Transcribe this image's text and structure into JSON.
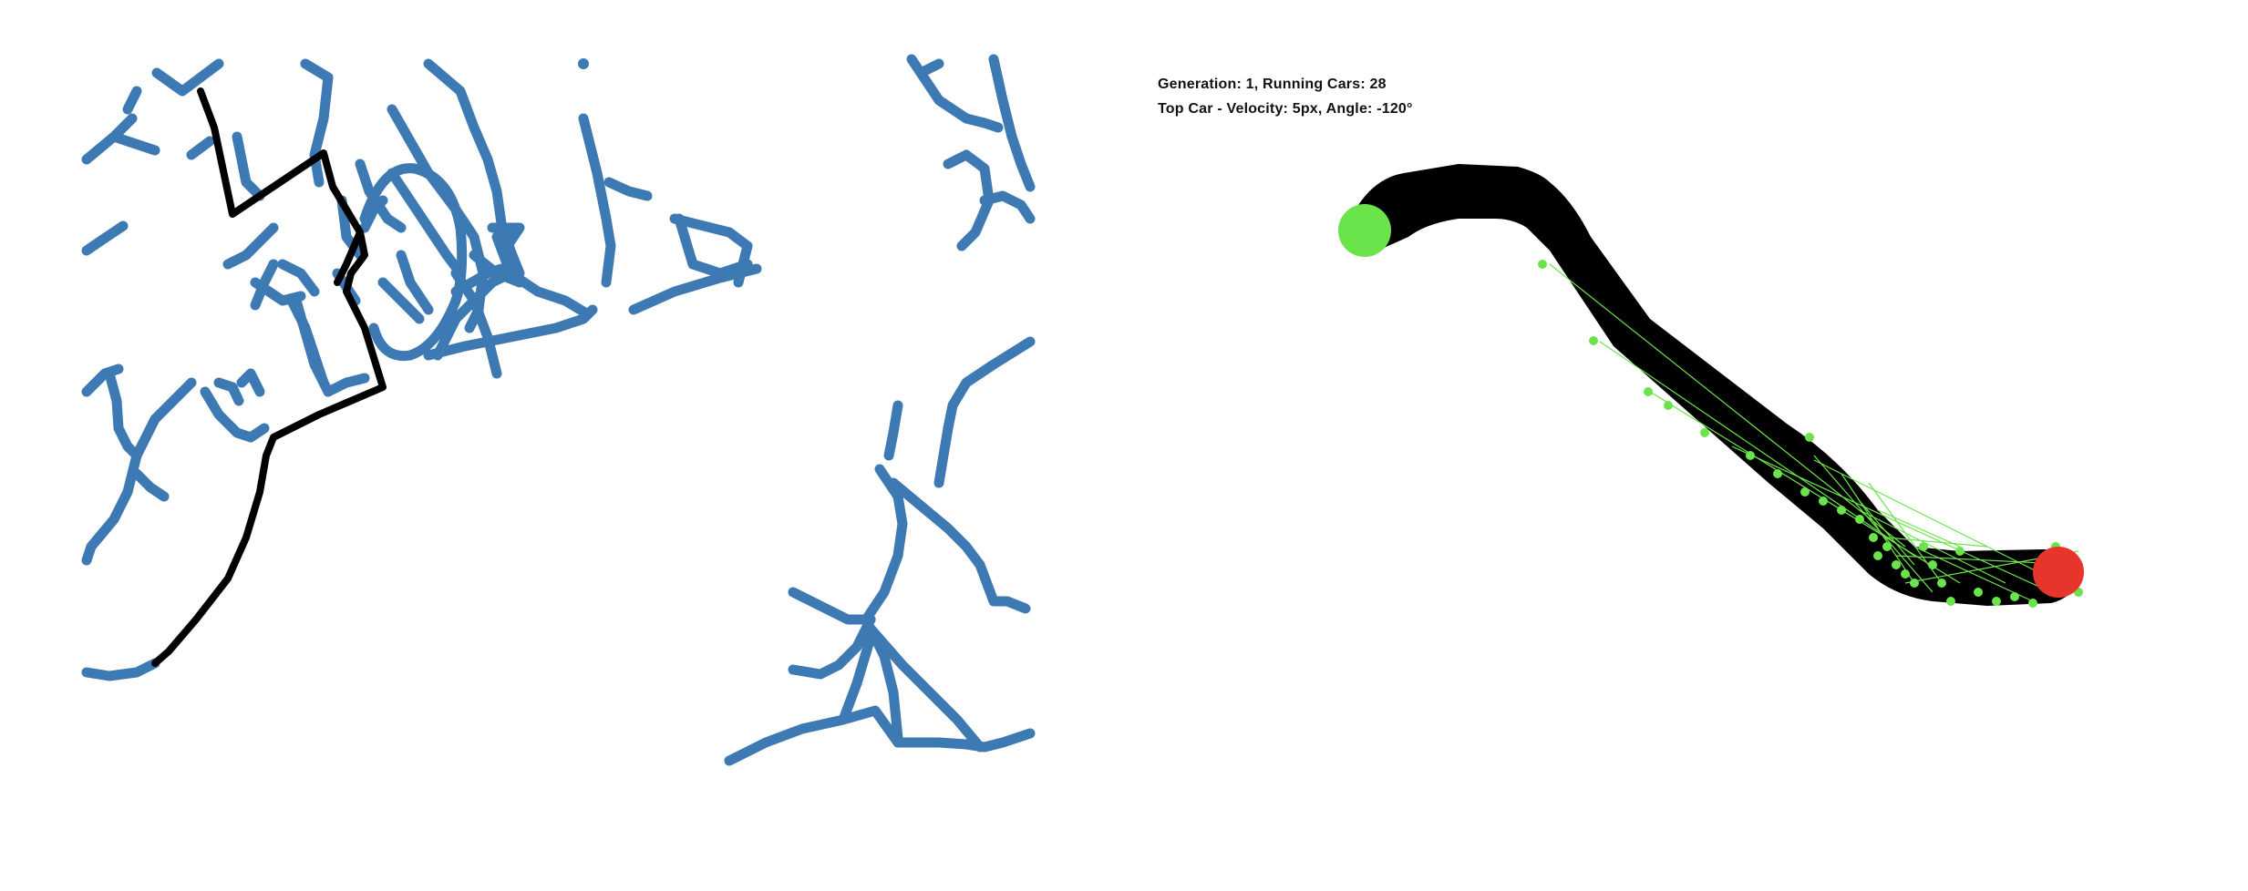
{
  "hud": {
    "generation_line": "Generation: 1, Running Cars: 28",
    "top_car_line": "Top Car - Velocity: 5px, Angle: -120°"
  },
  "colors": {
    "map_roads": "#3d79b3",
    "best_path": "#000000",
    "track": "#000000",
    "start_marker": "#6be34a",
    "goal_marker": "#e8352b",
    "sensor_rays": "#6be34a",
    "background": "#ffffff"
  },
  "icons": {
    "start": "start-circle-icon",
    "goal": "goal-circle-icon"
  }
}
